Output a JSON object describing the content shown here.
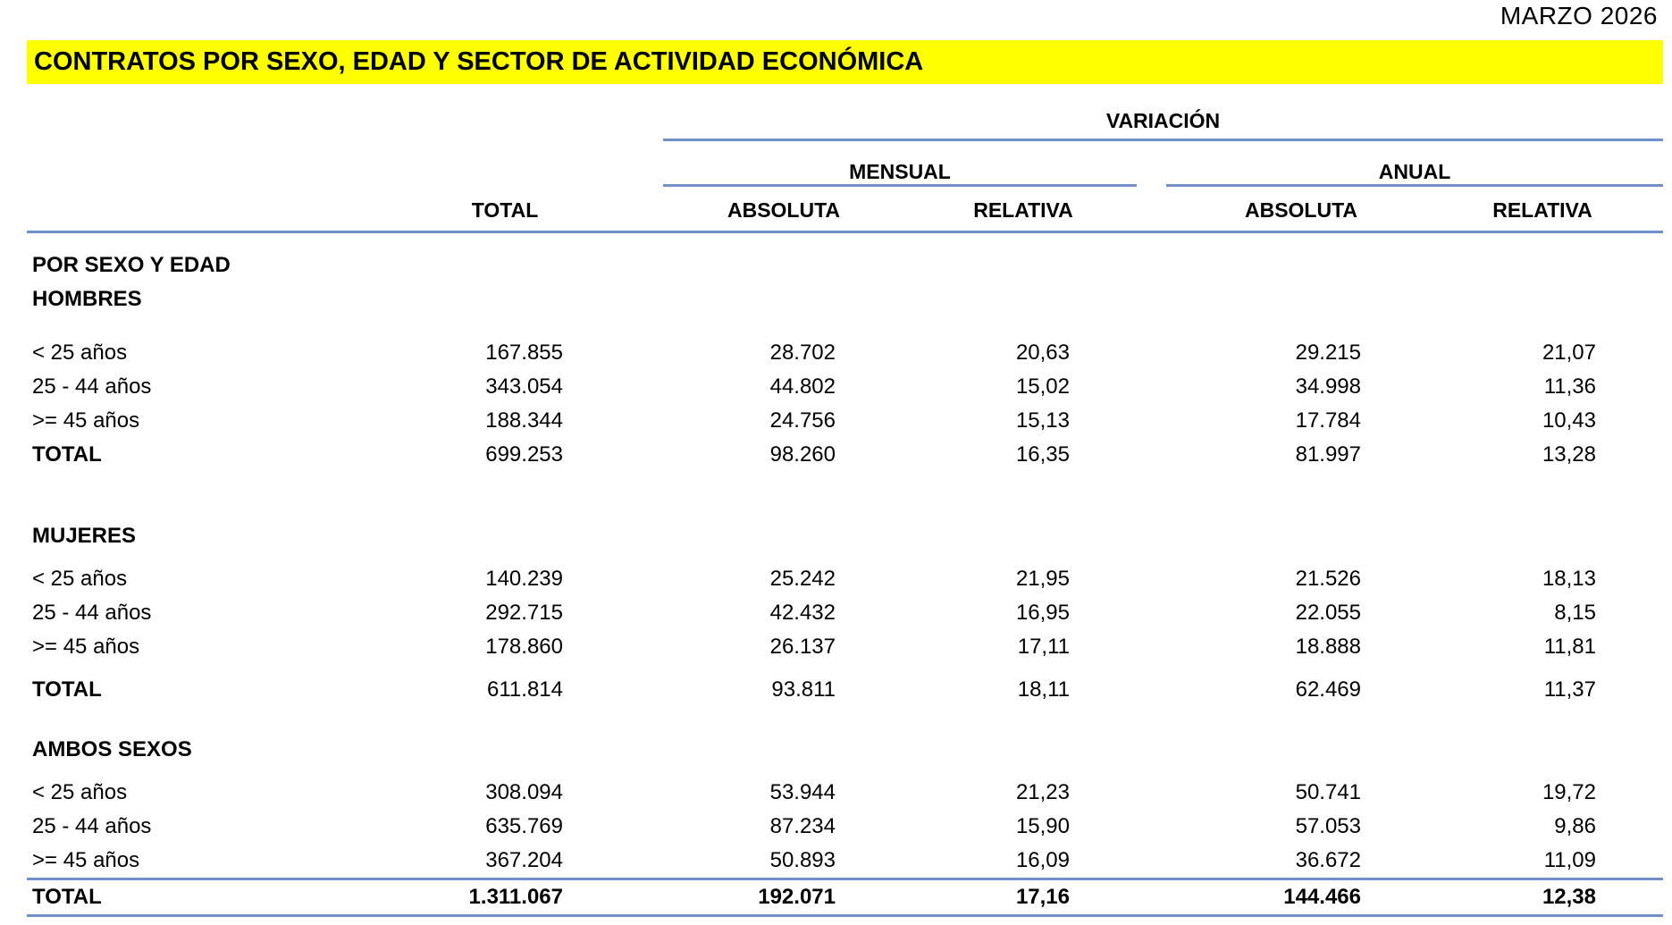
{
  "period": "MARZO 2026",
  "title": "CONTRATOS POR SEXO, EDAD Y SECTOR DE ACTIVIDAD ECONÓMICA",
  "colors": {
    "highlight": "#FFFF00",
    "rule_blue": "#7090C8",
    "text": "#000000"
  },
  "header": {
    "variacion_label": "VARIACIÓN",
    "mensual_label": "MENSUAL",
    "anual_label": "ANUAL",
    "total_label": "TOTAL",
    "mensual_absoluta_label": "ABSOLUTA",
    "mensual_relativa_label": "RELATIVA",
    "anual_absoluta_label": "ABSOLUTA",
    "anual_relativa_label": "RELATIVA"
  },
  "table": {
    "columns": [
      "TOTAL",
      "MENSUAL ABSOLUTA",
      "MENSUAL RELATIVA",
      "ANUAL ABSOLUTA",
      "ANUAL RELATIVA"
    ],
    "rows": [
      {
        "type": "section",
        "gap": "s",
        "label": "POR SEXO Y EDAD",
        "values": []
      },
      {
        "type": "group",
        "gap": "none",
        "label": "HOMBRES",
        "values": []
      },
      {
        "type": "data",
        "gap": "m",
        "label": "< 25 años",
        "values": [
          "167.855",
          "28.702",
          "20,63",
          "29.215",
          "21,07"
        ]
      },
      {
        "type": "data",
        "gap": "none",
        "label": "25 - 44 años",
        "values": [
          "343.054",
          "44.802",
          "15,02",
          "34.998",
          "11,36"
        ]
      },
      {
        "type": "data",
        "gap": "none",
        "label": ">= 45 años",
        "values": [
          "188.344",
          "24.756",
          "15,13",
          "17.784",
          "10,43"
        ]
      },
      {
        "type": "subtotal",
        "gap": "none",
        "label": "TOTAL",
        "values": [
          "699.253",
          "98.260",
          "16,35",
          "81.997",
          "13,28"
        ]
      },
      {
        "type": "group",
        "gap": "xl",
        "label": "MUJERES",
        "values": []
      },
      {
        "type": "data",
        "gap": "xs",
        "label": "< 25 años",
        "values": [
          "140.239",
          "25.242",
          "21,95",
          "21.526",
          "18,13"
        ]
      },
      {
        "type": "data",
        "gap": "none",
        "label": "25 - 44 años",
        "values": [
          "292.715",
          "42.432",
          "16,95",
          "22.055",
          "8,15"
        ]
      },
      {
        "type": "data",
        "gap": "none",
        "label": ">= 45 años",
        "values": [
          "178.860",
          "26.137",
          "17,11",
          "18.888",
          "11,81"
        ]
      },
      {
        "type": "subtotal",
        "gap": "xs",
        "label": "TOTAL",
        "values": [
          "611.814",
          "93.811",
          "18,11",
          "62.469",
          "11,37"
        ]
      },
      {
        "type": "group",
        "gap": "l",
        "label": "AMBOS SEXOS",
        "values": []
      },
      {
        "type": "data",
        "gap": "xs",
        "label": "< 25 años",
        "values": [
          "308.094",
          "53.944",
          "21,23",
          "50.741",
          "19,72"
        ]
      },
      {
        "type": "data",
        "gap": "none",
        "label": "25 - 44 años",
        "values": [
          "635.769",
          "87.234",
          "15,90",
          "57.053",
          "9,86"
        ]
      },
      {
        "type": "data",
        "gap": "none",
        "label": ">= 45 años",
        "values": [
          "367.204",
          "50.893",
          "16,09",
          "36.672",
          "11,09"
        ]
      },
      {
        "type": "grandtotal",
        "gap": "none",
        "label": "TOTAL",
        "values": [
          "1.311.067",
          "192.071",
          "17,16",
          "144.466",
          "12,38"
        ]
      }
    ]
  }
}
